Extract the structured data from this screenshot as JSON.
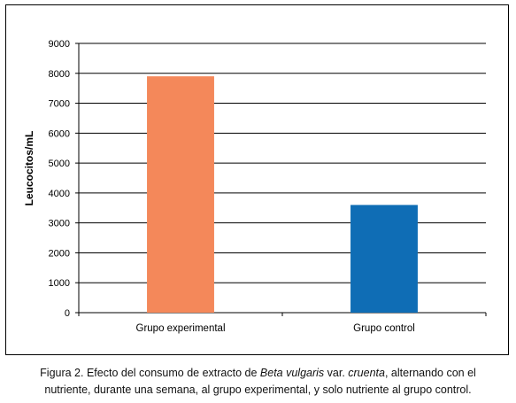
{
  "chart_data": {
    "type": "bar",
    "categories": [
      "Grupo experimental",
      "Grupo control"
    ],
    "values": [
      7900,
      3600
    ],
    "ylabel": "Leucocitos/mL",
    "xlabel": "",
    "ylim": [
      0,
      9000
    ],
    "yticks": [
      0,
      1000,
      2000,
      3000,
      4000,
      5000,
      6000,
      7000,
      8000,
      9000
    ],
    "grid": true,
    "bar_colors": [
      "#F4885A",
      "#0F6DB5"
    ]
  },
  "caption": {
    "line1_pre": "Figura 2. Efecto del consumo de extracto de ",
    "line1_italic1": "Beta vulgaris",
    "line1_mid": " var. ",
    "line1_italic2": "cruenta",
    "line1_post": ", alternando con el",
    "line2": "nutriente, durante una semana, al grupo experimental, y solo nutriente al grupo control."
  }
}
